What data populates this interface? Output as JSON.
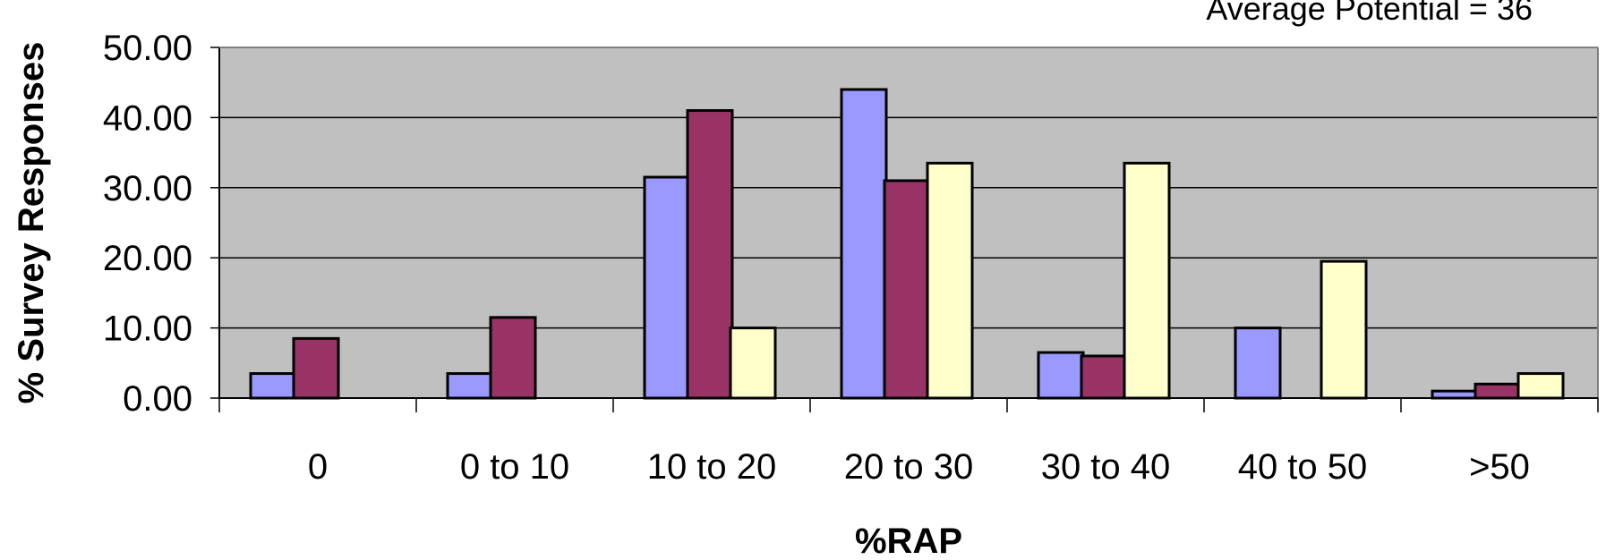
{
  "chart_data": {
    "type": "bar",
    "annotation": "Average Potential = 36",
    "xlabel": "%RAP",
    "ylabel": "% Survey Responses",
    "categories": [
      "0",
      "0 to 10",
      "10 to 20",
      "20 to 30",
      "30 to 40",
      "40 to 50",
      ">50"
    ],
    "ylim": [
      0,
      50
    ],
    "yticks": [
      "0.00",
      "10.00",
      "20.00",
      "30.00",
      "40.00",
      "50.00"
    ],
    "grid": true,
    "series": [
      {
        "color": "#9999ff",
        "values": [
          3.5,
          3.5,
          31.5,
          44,
          6.5,
          10,
          1
        ]
      },
      {
        "color": "#993366",
        "values": [
          8.5,
          11.5,
          41,
          31,
          6,
          0,
          2
        ]
      },
      {
        "color": "#ffffcc",
        "values": [
          0,
          0,
          10,
          33.5,
          33.5,
          19.5,
          3.5
        ]
      }
    ],
    "plot_background": "#c0c0c0"
  }
}
